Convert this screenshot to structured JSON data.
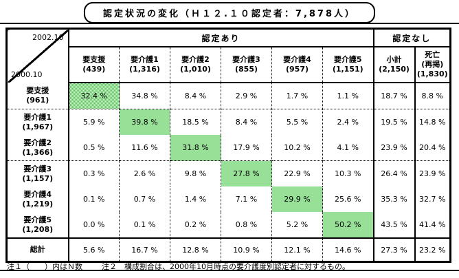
{
  "title": "認定状況の変化（Ｈ１２.１０認定者：7,878人）",
  "colors": {
    "highlight_green_dark": "#55cb55",
    "highlight_green_light": "#daf4da",
    "border": "#000000"
  },
  "header": {
    "corner_top": "2002.10",
    "corner_bottom": "2000.10",
    "group_yes": "認定あり",
    "group_no": "認定なし",
    "columns": [
      {
        "label": "要支援",
        "n": "(439)"
      },
      {
        "label": "要介護1",
        "n": "(1,316)"
      },
      {
        "label": "要介護2",
        "n": "(1,010)"
      },
      {
        "label": "要介護3",
        "n": "(855)"
      },
      {
        "label": "要介護4",
        "n": "(957)"
      },
      {
        "label": "要介護5",
        "n": "(1,151)"
      },
      {
        "label": "小計",
        "n": "(2,150)"
      },
      {
        "label": "死亡",
        "sub": "(再掲)",
        "n": "(1,830)"
      }
    ]
  },
  "rows": [
    {
      "label": "要支援",
      "n": "(961)",
      "values": [
        "32.4 %",
        "34.8 %",
        "8.4 %",
        "2.9 %",
        "1.7 %",
        "1.1 %",
        "18.7 %",
        "8.8 %"
      ],
      "highlight": 0,
      "dotted_below": true
    },
    {
      "label": "要介護1",
      "n": "(1,967)",
      "values": [
        "5.9 %",
        "39.8 %",
        "18.5 %",
        "8.4 %",
        "5.5 %",
        "2.4 %",
        "19.5 %",
        "14.8 %"
      ],
      "highlight": 1,
      "dotted_below": false
    },
    {
      "label": "要介護2",
      "n": "(1,366)",
      "values": [
        "0.5 %",
        "11.6 %",
        "31.8 %",
        "17.9 %",
        "10.2 %",
        "4.1 %",
        "23.9 %",
        "20.4 %"
      ],
      "highlight": 2,
      "dotted_below": true
    },
    {
      "label": "要介護3",
      "n": "(1,157)",
      "values": [
        "0.3 %",
        "2.6 %",
        "9.8 %",
        "27.8 %",
        "22.9 %",
        "10.3 %",
        "26.4 %",
        "23.9 %"
      ],
      "highlight": 3,
      "dotted_below": false
    },
    {
      "label": "要介護4",
      "n": "(1,219)",
      "values": [
        "0.1 %",
        "0.7 %",
        "1.4 %",
        "7.1 %",
        "29.9 %",
        "25.6 %",
        "35.3 %",
        "32.7 %"
      ],
      "highlight": 4,
      "dotted_below": false
    },
    {
      "label": "要介護5",
      "n": "(1,208)",
      "values": [
        "0.0 %",
        "0.1 %",
        "0.2 %",
        "0.8 %",
        "5.2 %",
        "50.2 %",
        "43.5 %",
        "41.4 %"
      ],
      "highlight": 5,
      "dotted_below": false
    }
  ],
  "total_row": {
    "label": "総計",
    "values": [
      "5.6 %",
      "16.7 %",
      "12.8 %",
      "10.9 %",
      "12.1 %",
      "14.6 %",
      "27.3 %",
      "23.2 %"
    ]
  },
  "notes": {
    "note1": "注１（　　）内はＮ数",
    "note2": "注２　構成割合は、2000年10月時点の要介護度別認定者に対するもの。"
  }
}
